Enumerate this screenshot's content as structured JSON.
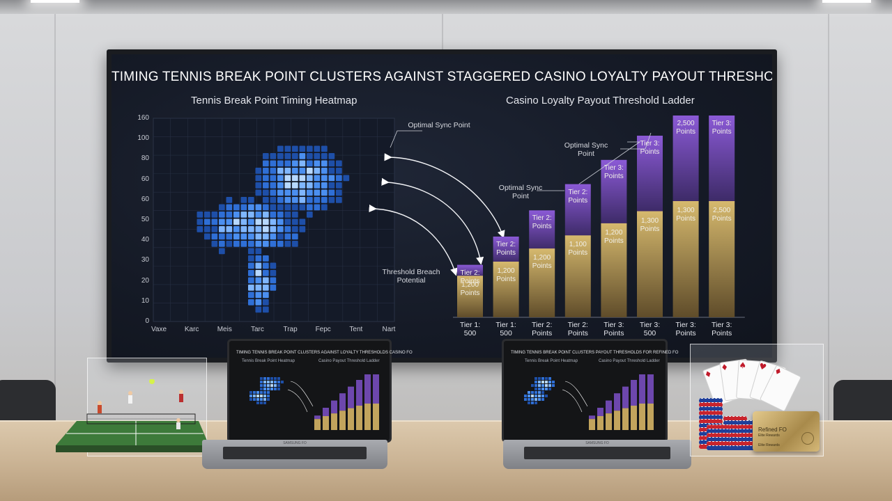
{
  "tv": {
    "title": "TIMING TENNIS BREAK POINT CLUSTERS AGAINST STAGGERED CASINO LOYALTY PAYOUT THRESHOLDS FOR REFINED FO"
  },
  "chart_data": [
    {
      "type": "heatmap",
      "title": "Tennis Break Point Timing Heatmap",
      "y_ticks": [
        "160",
        "100",
        "80",
        "60",
        "60",
        "50",
        "40",
        "30",
        "20",
        "10",
        "0"
      ],
      "x_ticks": [
        "Vaxe",
        "Karc",
        "Meis",
        "Tarc",
        "Trap",
        "Fepc",
        "Tent",
        "Nart"
      ],
      "colormap": [
        "#1e4fa8",
        "#2f6fd6",
        "#4b8ff0",
        "#7fb6ff",
        "#b7d8ff"
      ],
      "annotations": [
        "Optimal Sync Point",
        "Threshold Breach Potential"
      ]
    },
    {
      "type": "bar",
      "title": "Casino Loyalty Payout Threshold Ladder",
      "categories": [
        "Tier 1: 500",
        "Tier 1: 500",
        "Tier 2: Points",
        "Tier 2: Points",
        "Tier 3: Points",
        "Tier 3: 500",
        "Tier 3: Points",
        "Tier 3: Points"
      ],
      "series": [
        {
          "values": [
            0.26,
            0.4,
            0.53,
            0.66,
            0.78,
            0.9,
            1.0,
            1.0
          ],
          "color": "#7a4fc0"
        },
        {
          "values": [
            0.26,
            0.4,
            0.53,
            0.66,
            0.78,
            0.9,
            1.0,
            1.0
          ],
          "color": "#c9ab63"
        }
      ],
      "top_labels": [
        "Tier 2: Points",
        "Tier 2: Points",
        "Tier 2: Points",
        "Tier 2: Points",
        "Tier 3: Points",
        "Tier 3: Points",
        "2,500 Points",
        "Tier 3: Points"
      ],
      "bottom_labels": [
        "1,200 Points",
        "1,200 Points",
        "1,200 Points",
        "1,100 Points",
        "1,200 Points",
        "1,300 Points",
        "1,300 Points",
        "2,500 Points"
      ],
      "annotations": [
        "Optimal Sync Point",
        "Optimal Sync Point"
      ]
    }
  ],
  "laptops": [
    {
      "title": "TIMING TENNIS BREAK POINT CLUSTERS AGAINST LOYALTY THRESHOLDS CASINO FO",
      "sub_left": "Tennis Break Point Heatmap",
      "sub_right": "Casino Payout Threshold Ladder",
      "brand": "SAMSUNG FO"
    },
    {
      "title": "TIMING TENNIS BREAK POINT CLUSTERS PAYOUT THRESHOLDS FOR REFINED FO",
      "sub_left": "Tennis Break Point Heatmap",
      "sub_right": "Casino Payout Threshold Ladder",
      "brand": "SAMSUNG FO"
    }
  ],
  "props": {
    "card_title": "Refined FO",
    "card_sub": "Elite Rewards",
    "card_holder": "Elite Rewards"
  }
}
